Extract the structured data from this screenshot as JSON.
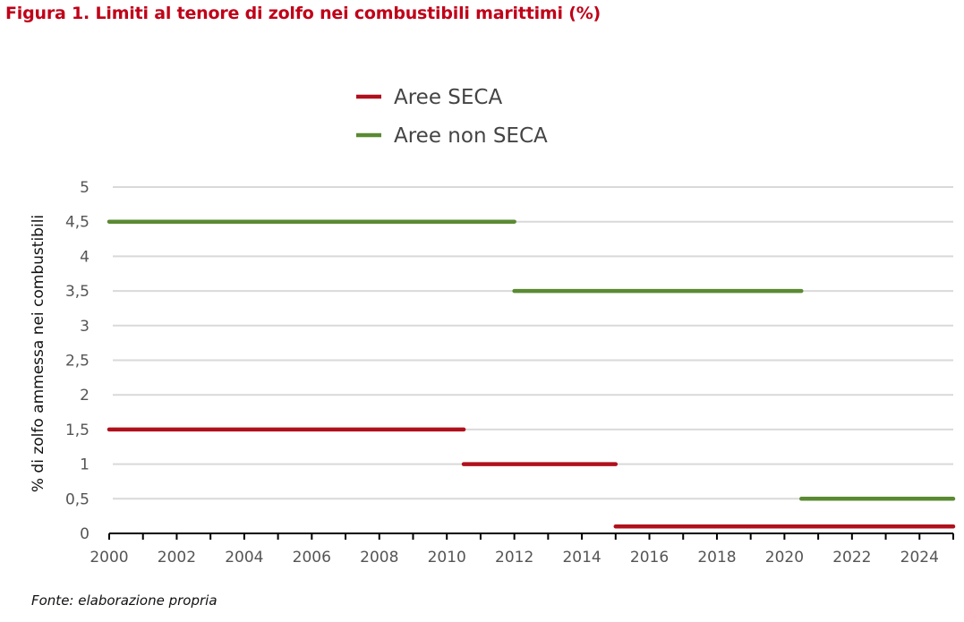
{
  "title": "Figura 1. Limiti al tenore di zolfo nei combustibili marittimi (%)",
  "source": "Fonte: elaborazione propria",
  "colors": {
    "seca": "#b0101c",
    "non_seca": "#5a8a32",
    "grid": "#d9d9d9",
    "axis": "#000000"
  },
  "chart_data": {
    "type": "line",
    "title": "Figura 1. Limiti al tenore di zolfo nei combustibili marittimi (%)",
    "xlabel": "",
    "ylabel": "% di zolfo ammessa nei combustibili",
    "xlim": [
      2000,
      2025
    ],
    "ylim": [
      0,
      5
    ],
    "x_ticks": [
      2000,
      2002,
      2004,
      2006,
      2008,
      2010,
      2012,
      2014,
      2016,
      2018,
      2020,
      2022,
      2024
    ],
    "y_ticks": [
      0,
      0.5,
      1,
      1.5,
      2,
      2.5,
      3,
      3.5,
      4,
      4.5,
      5
    ],
    "y_tick_labels": [
      "0",
      "0,5",
      "1",
      "1,5",
      "2",
      "2,5",
      "3",
      "3,5",
      "4",
      "4,5",
      "5"
    ],
    "grid": true,
    "legend_position": "top-center",
    "series": [
      {
        "name": "Aree SECA",
        "color": "#b0101c",
        "segments": [
          {
            "x_start": 2000,
            "x_end": 2010.5,
            "y": 1.5
          },
          {
            "x_start": 2010.5,
            "x_end": 2015,
            "y": 1.0
          },
          {
            "x_start": 2015,
            "x_end": 2025,
            "y": 0.1
          }
        ]
      },
      {
        "name": "Aree non SECA",
        "color": "#5a8a32",
        "segments": [
          {
            "x_start": 2000,
            "x_end": 2012,
            "y": 4.5
          },
          {
            "x_start": 2012,
            "x_end": 2020.5,
            "y": 3.5
          },
          {
            "x_start": 2020.5,
            "x_end": 2025,
            "y": 0.5
          }
        ]
      }
    ]
  }
}
